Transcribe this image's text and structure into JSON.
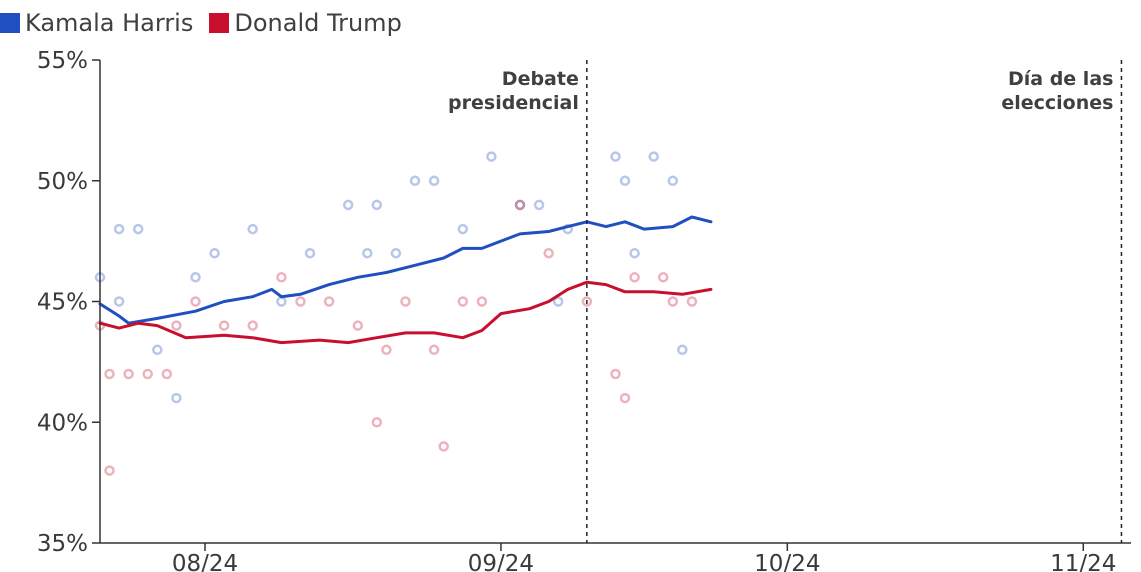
{
  "legend": {
    "harris_label": "Kamala Harris",
    "trump_label": "Donald Trump"
  },
  "colors": {
    "harris": "#1f4fc0",
    "trump": "#c8102e",
    "axis": "#333333"
  },
  "chart_data": {
    "type": "line",
    "title": "",
    "xlabel": "",
    "ylabel": "",
    "ylim": [
      35,
      55
    ],
    "xlim": [
      "2024-07-21",
      "2024-11-06"
    ],
    "y_ticks": [
      {
        "value": 35,
        "label": "35%"
      },
      {
        "value": 40,
        "label": "40%"
      },
      {
        "value": 45,
        "label": "45%"
      },
      {
        "value": 50,
        "label": "50%"
      },
      {
        "value": 55,
        "label": "55%"
      }
    ],
    "x_ticks": [
      {
        "date": "2024-08-01",
        "label": "08/24"
      },
      {
        "date": "2024-09-01",
        "label": "09/24"
      },
      {
        "date": "2024-10-01",
        "label": "10/24"
      },
      {
        "date": "2024-11-01",
        "label": "11/24"
      }
    ],
    "legend_position": "top-left",
    "grid": false,
    "annotations": [
      {
        "date": "2024-09-10",
        "lines": [
          "Debate",
          "presidencial"
        ],
        "style": "dashed-vertical"
      },
      {
        "date": "2024-11-05",
        "lines": [
          "Día de las",
          "elecciones"
        ],
        "style": "dashed-vertical"
      }
    ],
    "series": [
      {
        "name": "Kamala Harris",
        "color": "#1f4fc0",
        "points": [
          [
            "2024-07-21",
            44.9
          ],
          [
            "2024-07-23",
            44.4
          ],
          [
            "2024-07-24",
            44.1
          ],
          [
            "2024-07-27",
            44.3
          ],
          [
            "2024-07-31",
            44.6
          ],
          [
            "2024-08-03",
            45.0
          ],
          [
            "2024-08-06",
            45.2
          ],
          [
            "2024-08-08",
            45.5
          ],
          [
            "2024-08-09",
            45.2
          ],
          [
            "2024-08-11",
            45.3
          ],
          [
            "2024-08-14",
            45.7
          ],
          [
            "2024-08-17",
            46.0
          ],
          [
            "2024-08-20",
            46.2
          ],
          [
            "2024-08-23",
            46.5
          ],
          [
            "2024-08-26",
            46.8
          ],
          [
            "2024-08-28",
            47.2
          ],
          [
            "2024-08-30",
            47.2
          ],
          [
            "2024-09-01",
            47.5
          ],
          [
            "2024-09-03",
            47.8
          ],
          [
            "2024-09-06",
            47.9
          ],
          [
            "2024-09-08",
            48.1
          ],
          [
            "2024-09-10",
            48.3
          ],
          [
            "2024-09-12",
            48.1
          ],
          [
            "2024-09-14",
            48.3
          ],
          [
            "2024-09-16",
            48.0
          ],
          [
            "2024-09-19",
            48.1
          ],
          [
            "2024-09-21",
            48.5
          ],
          [
            "2024-09-23",
            48.3
          ]
        ]
      },
      {
        "name": "Donald Trump",
        "color": "#c8102e",
        "points": [
          [
            "2024-07-21",
            44.1
          ],
          [
            "2024-07-23",
            43.9
          ],
          [
            "2024-07-25",
            44.1
          ],
          [
            "2024-07-27",
            44.0
          ],
          [
            "2024-07-30",
            43.5
          ],
          [
            "2024-08-03",
            43.6
          ],
          [
            "2024-08-06",
            43.5
          ],
          [
            "2024-08-09",
            43.3
          ],
          [
            "2024-08-13",
            43.4
          ],
          [
            "2024-08-16",
            43.3
          ],
          [
            "2024-08-19",
            43.5
          ],
          [
            "2024-08-22",
            43.7
          ],
          [
            "2024-08-25",
            43.7
          ],
          [
            "2024-08-28",
            43.5
          ],
          [
            "2024-08-30",
            43.8
          ],
          [
            "2024-09-01",
            44.5
          ],
          [
            "2024-09-04",
            44.7
          ],
          [
            "2024-09-06",
            45.0
          ],
          [
            "2024-09-08",
            45.5
          ],
          [
            "2024-09-10",
            45.8
          ],
          [
            "2024-09-12",
            45.7
          ],
          [
            "2024-09-14",
            45.4
          ],
          [
            "2024-09-17",
            45.4
          ],
          [
            "2024-09-20",
            45.3
          ],
          [
            "2024-09-23",
            45.5
          ]
        ]
      }
    ],
    "polls": [
      {
        "series": "Kamala Harris",
        "points": [
          [
            "2024-07-21",
            46
          ],
          [
            "2024-07-23",
            48
          ],
          [
            "2024-07-25",
            48
          ],
          [
            "2024-07-23",
            45
          ],
          [
            "2024-07-27",
            43
          ],
          [
            "2024-07-29",
            41
          ],
          [
            "2024-07-31",
            46
          ],
          [
            "2024-08-02",
            47
          ],
          [
            "2024-08-06",
            48
          ],
          [
            "2024-08-09",
            45
          ],
          [
            "2024-08-12",
            47
          ],
          [
            "2024-08-16",
            49
          ],
          [
            "2024-08-19",
            49
          ],
          [
            "2024-08-21",
            47
          ],
          [
            "2024-08-23",
            50
          ],
          [
            "2024-08-25",
            50
          ],
          [
            "2024-08-28",
            48
          ],
          [
            "2024-08-31",
            51
          ],
          [
            "2024-09-03",
            49
          ],
          [
            "2024-09-05",
            49
          ],
          [
            "2024-09-08",
            48
          ],
          [
            "2024-09-13",
            51
          ],
          [
            "2024-09-14",
            50
          ],
          [
            "2024-09-17",
            51
          ],
          [
            "2024-09-19",
            50
          ],
          [
            "2024-09-15",
            47
          ],
          [
            "2024-09-20",
            43
          ],
          [
            "2024-08-18",
            47
          ],
          [
            "2024-09-07",
            45
          ]
        ]
      },
      {
        "series": "Donald Trump",
        "points": [
          [
            "2024-07-21",
            44
          ],
          [
            "2024-07-22",
            42
          ],
          [
            "2024-07-24",
            42
          ],
          [
            "2024-07-26",
            42
          ],
          [
            "2024-07-28",
            42
          ],
          [
            "2024-07-29",
            44
          ],
          [
            "2024-07-31",
            45
          ],
          [
            "2024-08-03",
            44
          ],
          [
            "2024-08-06",
            44
          ],
          [
            "2024-08-09",
            46
          ],
          [
            "2024-08-11",
            45
          ],
          [
            "2024-08-14",
            45
          ],
          [
            "2024-08-17",
            44
          ],
          [
            "2024-08-20",
            43
          ],
          [
            "2024-08-22",
            45
          ],
          [
            "2024-08-25",
            43
          ],
          [
            "2024-08-28",
            45
          ],
          [
            "2024-08-30",
            45
          ],
          [
            "2024-09-03",
            49
          ],
          [
            "2024-09-06",
            47
          ],
          [
            "2024-09-10",
            45
          ],
          [
            "2024-09-13",
            42
          ],
          [
            "2024-09-15",
            46
          ],
          [
            "2024-09-18",
            46
          ],
          [
            "2024-09-19",
            45
          ],
          [
            "2024-09-21",
            45
          ],
          [
            "2024-09-14",
            41
          ],
          [
            "2024-08-19",
            40
          ],
          [
            "2024-07-22",
            38
          ],
          [
            "2024-08-26",
            39
          ]
        ]
      }
    ]
  }
}
